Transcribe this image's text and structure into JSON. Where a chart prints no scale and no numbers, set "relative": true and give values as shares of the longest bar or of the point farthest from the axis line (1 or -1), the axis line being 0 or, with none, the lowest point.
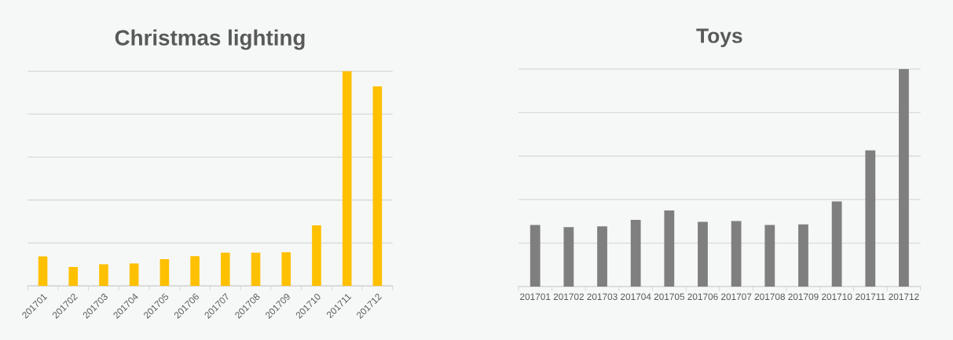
{
  "chart_data": [
    {
      "type": "bar",
      "title": "Christmas lighting",
      "relative": true,
      "grid": "y",
      "categories": [
        "201701",
        "201702",
        "201703",
        "201704",
        "201705",
        "201706",
        "201707",
        "201708",
        "201709",
        "201710",
        "201711",
        "201712"
      ],
      "series": [
        {
          "color": "#ffc000",
          "values": [
            0.138,
            0.088,
            0.101,
            0.105,
            0.125,
            0.139,
            0.155,
            0.155,
            0.157,
            0.282,
            1,
            0.93
          ]
        }
      ]
    },
    {
      "type": "bar",
      "title": "Toys",
      "relative": true,
      "grid": "y",
      "categories": [
        "201701",
        "201702",
        "201703",
        "201704",
        "201705",
        "201706",
        "201707",
        "201708",
        "201709",
        "201710",
        "201711",
        "201712"
      ],
      "series": [
        {
          "color": "#7f7f7f",
          "values": [
            0.283,
            0.273,
            0.277,
            0.307,
            0.35,
            0.298,
            0.301,
            0.283,
            0.286,
            0.392,
            0.626,
            1
          ]
        }
      ]
    }
  ]
}
